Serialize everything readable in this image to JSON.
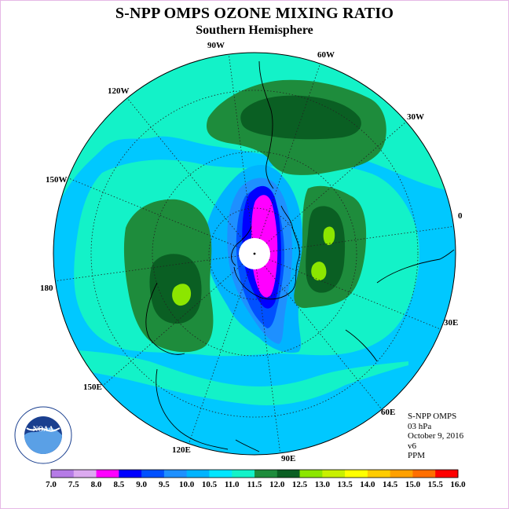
{
  "title": "S-NPP OMPS OZONE MIXING RATIO",
  "subtitle": "Southern Hemisphere",
  "info": {
    "instrument": "S-NPP OMPS",
    "level": "03 hPa",
    "date": "October 9, 2016",
    "version": "v6",
    "units": "PPM"
  },
  "logo_text": "NOAA",
  "longitude_labels": [
    "90W",
    "60W",
    "30W",
    "0",
    "30E",
    "60E",
    "90E",
    "120E",
    "150E",
    "180",
    "150W",
    "120W"
  ],
  "colorbar": {
    "ticks": [
      "7.0",
      "7.5",
      "8.0",
      "8.5",
      "9.0",
      "9.5",
      "10.0",
      "10.5",
      "11.0",
      "11.5",
      "12.0",
      "12.5",
      "13.0",
      "13.5",
      "14.0",
      "14.5",
      "15.0",
      "15.5",
      "16.0"
    ],
    "colors": [
      "#b57be6",
      "#dcaaf0",
      "#ff00ff",
      "#0000ff",
      "#0050ff",
      "#1e90ff",
      "#00b4ff",
      "#00e6ff",
      "#13f2c8",
      "#1e8c3c",
      "#0a5f23",
      "#8ce600",
      "#c8f000",
      "#ffff00",
      "#ffcc00",
      "#ffa000",
      "#ff6e00",
      "#ff0000",
      "#8b5a3c"
    ]
  },
  "colors": {
    "ocean_bg": "#13f2c8",
    "low_light_blue": "#00c8ff",
    "mid_blue": "#0096ff",
    "deep_blue": "#0000ff",
    "magenta": "#ff00ff",
    "green_light": "#1e8c3c",
    "green_dark": "#0a5f23",
    "lime": "#8ce600"
  }
}
